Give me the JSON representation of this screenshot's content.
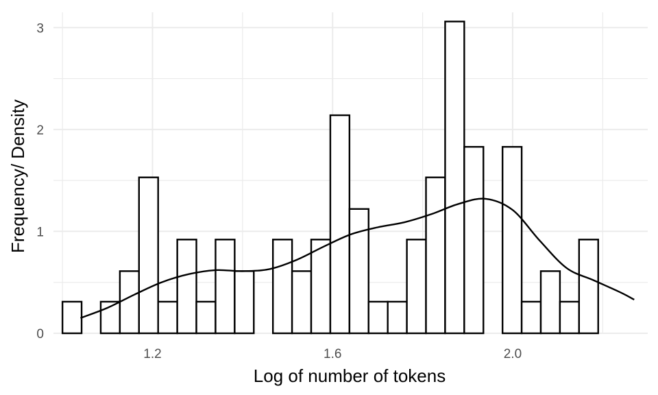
{
  "chart_data": {
    "type": "bar",
    "xlabel": "Log of number of tokens",
    "ylabel": "Frequency/ Density",
    "xlim": [
      0.98,
      2.3
    ],
    "ylim": [
      0,
      3.15
    ],
    "x_ticks": [
      {
        "value": 1.2,
        "label": "1.2"
      },
      {
        "value": 1.6,
        "label": "1.6"
      },
      {
        "value": 2.0,
        "label": "2.0"
      }
    ],
    "x_minor_ticks": [
      1.0,
      1.4,
      1.8,
      2.2
    ],
    "y_ticks": [
      {
        "value": 0,
        "label": "0"
      },
      {
        "value": 1,
        "label": "1"
      },
      {
        "value": 2,
        "label": "2"
      },
      {
        "value": 3,
        "label": "3"
      }
    ],
    "y_minor_ticks": [
      0.5,
      1.5,
      2.5
    ],
    "grid": true,
    "histogram": {
      "bin_start": 1.0,
      "bin_width": 0.0425,
      "values": [
        0.31,
        0,
        0.31,
        0.61,
        1.53,
        0.31,
        0.92,
        0.31,
        0.92,
        0.61,
        0,
        0.92,
        0.61,
        0.92,
        2.14,
        1.22,
        0.31,
        0.31,
        0.92,
        1.53,
        3.06,
        1.83,
        0,
        1.83,
        0.31,
        0.61,
        0.31,
        0.92
      ]
    },
    "density": {
      "x": [
        1.04,
        1.1,
        1.16,
        1.22,
        1.28,
        1.34,
        1.4,
        1.46,
        1.52,
        1.58,
        1.64,
        1.7,
        1.76,
        1.82,
        1.88,
        1.94,
        2.0,
        2.06,
        2.12,
        2.18,
        2.24,
        2.27
      ],
      "y": [
        0.15,
        0.25,
        0.38,
        0.5,
        0.58,
        0.62,
        0.61,
        0.63,
        0.72,
        0.85,
        0.97,
        1.04,
        1.09,
        1.17,
        1.27,
        1.32,
        1.21,
        0.91,
        0.64,
        0.52,
        0.4,
        0.33
      ]
    }
  }
}
